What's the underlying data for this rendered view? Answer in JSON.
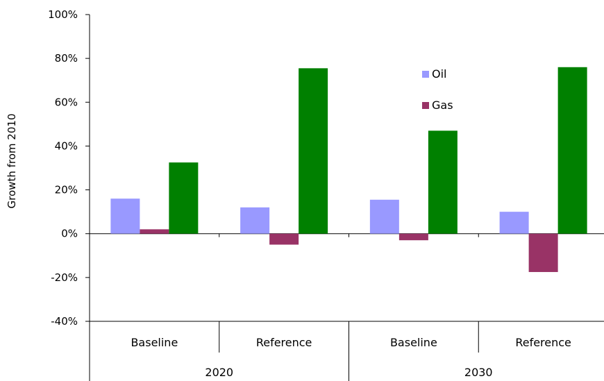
{
  "chart_data": {
    "type": "bar",
    "ylabel": "Growth from 2010",
    "ylim": [
      -40,
      100
    ],
    "y_ticks": [
      "100%",
      "80%",
      "60%",
      "40%",
      "20%",
      "0%",
      "-20%",
      "-40%"
    ],
    "y_tick_values": [
      100,
      80,
      60,
      40,
      20,
      0,
      -20,
      -40
    ],
    "categories": [
      "Baseline",
      "Reference",
      "Baseline",
      "Reference"
    ],
    "groups": [
      "2020",
      "2030"
    ],
    "series": [
      {
        "name": "Oil",
        "color": "#9999ff",
        "values": [
          16,
          12,
          15.5,
          10
        ]
      },
      {
        "name": "Gas",
        "color": "#993366",
        "values": [
          2,
          -5,
          -3,
          -17.5
        ]
      },
      {
        "name": "",
        "color": "#008000",
        "values": [
          32.5,
          75.5,
          47,
          76
        ]
      }
    ],
    "legend": {
      "placement": "top-right-inside",
      "entries": [
        "Oil",
        "Gas"
      ]
    },
    "grid": false
  }
}
